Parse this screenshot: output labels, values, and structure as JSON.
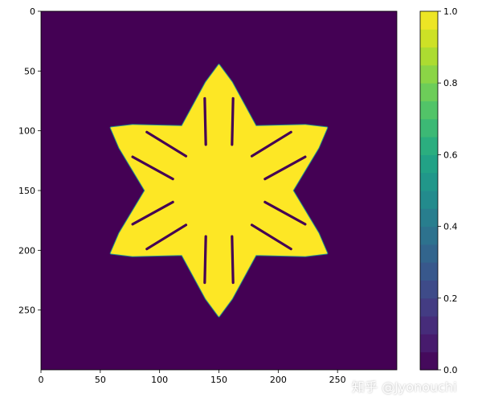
{
  "chart_data": {
    "type": "heatmap",
    "title": "",
    "xlabel": "",
    "ylabel": "",
    "grid_size": 300,
    "xlim": [
      0,
      300
    ],
    "ylim": [
      300,
      0
    ],
    "x_ticks": [
      0,
      50,
      100,
      150,
      200,
      250
    ],
    "y_ticks": [
      0,
      50,
      100,
      150,
      200,
      250
    ],
    "colormap": "viridis",
    "colorbar": {
      "range": [
        0.0,
        1.0
      ],
      "ticks": [
        "0.0",
        "0.2",
        "0.4",
        "0.6",
        "0.8",
        "1.0"
      ],
      "levels": 20
    },
    "background_value": 0.0,
    "shape_value": 1.0,
    "shape": {
      "description": "six-armed snowflake (dendritic crystal) of value 1.0 on background 0.0",
      "center": [
        150,
        150
      ],
      "arm_tip_distance": 105,
      "arm_angles_deg": [
        90,
        30,
        -30,
        -90,
        -150,
        150
      ]
    }
  },
  "watermark": {
    "text": "知乎 @Jyonouchi"
  },
  "colors": {
    "low": "#440154",
    "high": "#fde725"
  }
}
